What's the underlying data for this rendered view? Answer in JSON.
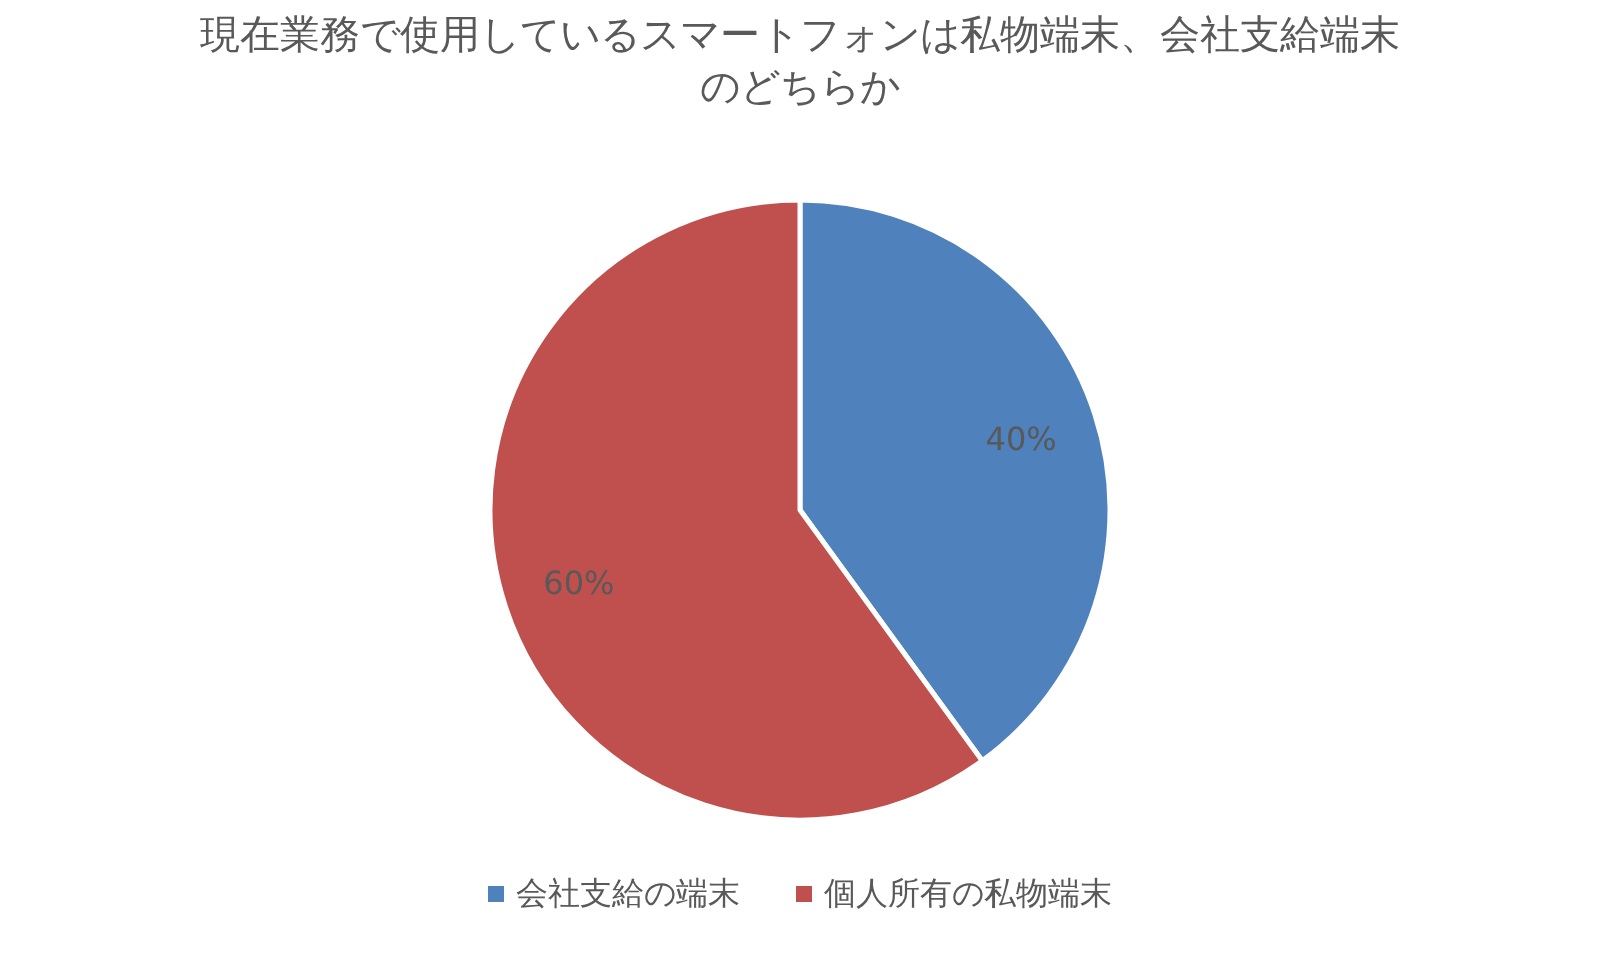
{
  "chart_data": {
    "type": "pie",
    "title": "現在業務で使用しているスマートフォンは私物端末、会社支給端末のどちらか",
    "categories": [
      "会社支給の端末",
      "個人所有の私物端末"
    ],
    "values": [
      40,
      60
    ],
    "colors": [
      "#4f81bd",
      "#c0504d"
    ],
    "value_labels": [
      "40%",
      "60%"
    ],
    "legend": "bottom"
  }
}
